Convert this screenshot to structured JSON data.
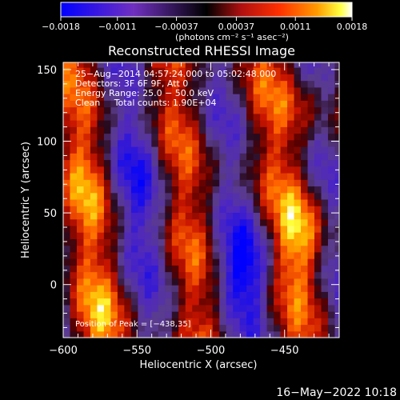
{
  "chart_data": {
    "type": "heatmap",
    "title": "Reconstructed RHESSI Image",
    "xlabel": "Heliocentric X (arcsec)",
    "ylabel": "Heliocentric Y (arcsec)",
    "xlim": [
      -600,
      -413
    ],
    "ylim": [
      -37,
      155
    ],
    "x_ticks": [
      -600,
      -550,
      -500,
      -450
    ],
    "x_tick_labels": [
      "−600",
      "−550",
      "−500",
      "−450"
    ],
    "y_ticks": [
      0,
      50,
      100,
      150
    ],
    "y_tick_labels": [
      "0",
      "50",
      "100",
      "150"
    ],
    "colorbar": {
      "range": [
        -0.0018,
        0.0018
      ],
      "ticks": [
        -0.0018,
        -0.0011,
        -0.00037,
        0.00037,
        0.0011,
        0.0018
      ],
      "tick_labels": [
        "−0.0018",
        "−0.0011",
        "−0.00037",
        "0.00037",
        "0.0011",
        "0.0018"
      ],
      "unit_label": "(photons cm⁻² s⁻¹ asec⁻²)"
    },
    "annotations": [
      "25−Aug−2014 04:57:24.000 to 05:02:48.000",
      "Detectors: 3F 6F 9F, Att 0",
      "Energy Range: 25.0 − 50.0 keV",
      "Clean     Total counts: 1.90E+04"
    ],
    "peak_label": "Position of Peak = [−438,35]",
    "peak": {
      "x": -438,
      "y": 35
    },
    "colors": [
      "#0000ff",
      "#6a28b4",
      "#5a3a8c",
      "#000000",
      "#a01010",
      "#ff3000",
      "#ff9a00",
      "#ffff40",
      "#ffffff"
    ]
  },
  "footer_date": "16−May−2022 10:18"
}
